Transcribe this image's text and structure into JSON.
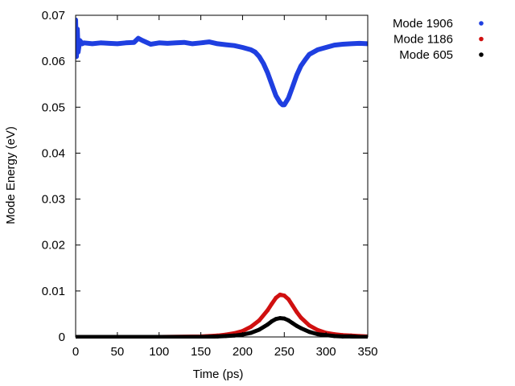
{
  "chart_data": {
    "type": "scatter",
    "title": "",
    "xlabel": "Time (ps)",
    "ylabel": "Mode Energy (eV)",
    "xlim": [
      0,
      350
    ],
    "ylim": [
      0,
      0.07
    ],
    "xticks": [
      0,
      50,
      100,
      150,
      200,
      250,
      300,
      350
    ],
    "yticks": [
      0,
      0.01,
      0.02,
      0.03,
      0.04,
      0.05,
      0.06,
      0.07
    ],
    "xtick_labels": [
      "0",
      "50",
      "100",
      "150",
      "200",
      "250",
      "300",
      "350"
    ],
    "ytick_labels": [
      "0",
      "0.01",
      "0.02",
      "0.03",
      "0.04",
      "0.05",
      "0.06",
      "0.07"
    ],
    "grid": false,
    "legend_position": "outside-top-right",
    "series": [
      {
        "name": "Mode 1906",
        "color": "#1f3fe0",
        "x": [
          0,
          1,
          2,
          3,
          5,
          8,
          10,
          20,
          30,
          40,
          50,
          60,
          70,
          75,
          80,
          90,
          100,
          110,
          120,
          130,
          140,
          150,
          160,
          170,
          180,
          190,
          200,
          210,
          215,
          220,
          225,
          230,
          235,
          240,
          245,
          248,
          250,
          255,
          260,
          265,
          270,
          275,
          280,
          290,
          300,
          310,
          320,
          330,
          340,
          350
        ],
        "y": [
          0.069,
          0.061,
          0.067,
          0.062,
          0.0645,
          0.0638,
          0.064,
          0.0638,
          0.064,
          0.0639,
          0.0638,
          0.064,
          0.0641,
          0.065,
          0.0645,
          0.0637,
          0.064,
          0.0639,
          0.064,
          0.0641,
          0.0638,
          0.064,
          0.0642,
          0.0638,
          0.0636,
          0.0634,
          0.063,
          0.0625,
          0.062,
          0.061,
          0.0595,
          0.0575,
          0.055,
          0.0525,
          0.051,
          0.0505,
          0.0505,
          0.052,
          0.0545,
          0.057,
          0.059,
          0.0603,
          0.0615,
          0.0625,
          0.063,
          0.0635,
          0.0637,
          0.0638,
          0.0639,
          0.0638
        ]
      },
      {
        "name": "Mode 1186",
        "color": "#d01010",
        "x": [
          0,
          50,
          100,
          150,
          160,
          170,
          180,
          190,
          200,
          210,
          220,
          230,
          235,
          240,
          245,
          250,
          255,
          260,
          265,
          270,
          280,
          290,
          300,
          310,
          320,
          330,
          340,
          350
        ],
        "y": [
          0,
          0,
          0,
          0.0001,
          0.0002,
          0.0003,
          0.0005,
          0.0008,
          0.0013,
          0.0022,
          0.0036,
          0.0058,
          0.0072,
          0.0085,
          0.0092,
          0.009,
          0.0082,
          0.0068,
          0.0054,
          0.0042,
          0.0025,
          0.0015,
          0.0009,
          0.0006,
          0.0004,
          0.0003,
          0.0002,
          0.0001
        ]
      },
      {
        "name": "Mode 605",
        "color": "#000000",
        "x": [
          0,
          50,
          100,
          150,
          170,
          180,
          190,
          200,
          210,
          220,
          230,
          235,
          240,
          245,
          250,
          255,
          260,
          265,
          270,
          280,
          290,
          300,
          310,
          320,
          330,
          340,
          350
        ],
        "y": [
          0,
          0,
          0,
          0,
          0.0001,
          0.0002,
          0.0003,
          0.0005,
          0.0009,
          0.0016,
          0.0027,
          0.0034,
          0.0039,
          0.0041,
          0.004,
          0.0036,
          0.003,
          0.0024,
          0.0019,
          0.0011,
          0.0006,
          0.0004,
          0.0002,
          0.0001,
          0.0001,
          0,
          0
        ]
      }
    ]
  }
}
